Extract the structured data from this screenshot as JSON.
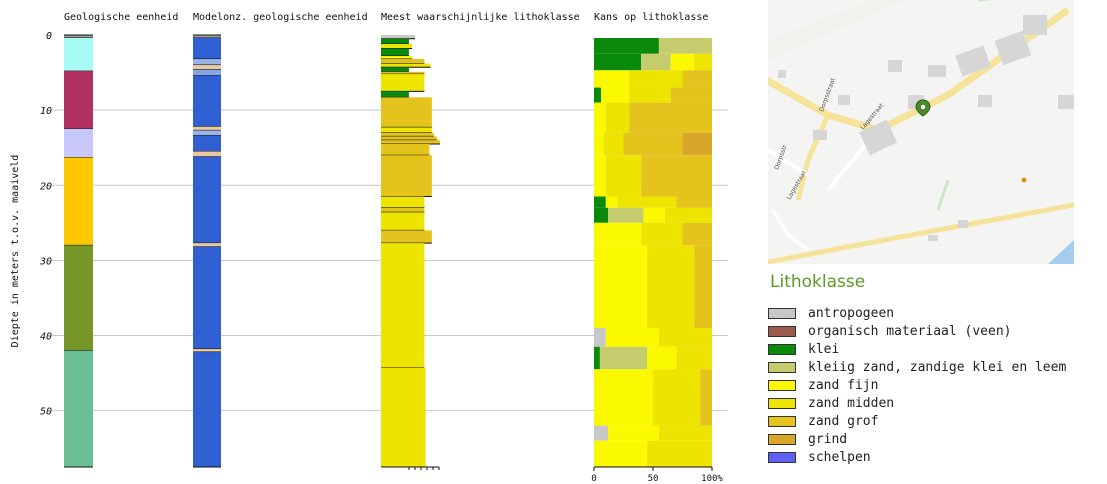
{
  "chart_data": {
    "type": "geological-profile",
    "ylabel": "Diepte in meters t.o.v. maaiveld",
    "ylim": [
      0,
      57.5
    ],
    "y_ticks": [
      0,
      10,
      20,
      30,
      40,
      50
    ],
    "grid": true,
    "columns": [
      {
        "title": "Geologische eenheid"
      },
      {
        "title": "Modelonz. geologische eenheid"
      },
      {
        "title": "Meest waarschijnlijke lithoklasse"
      },
      {
        "title": "Kans op lithoklasse"
      }
    ],
    "geologische_eenheid": [
      {
        "top": 0,
        "bottom": 0.4,
        "color": "#9e9e9e"
      },
      {
        "top": 0.4,
        "bottom": 4.8,
        "color": "#a6fbf4"
      },
      {
        "top": 4.8,
        "bottom": 12.5,
        "color": "#b0305f"
      },
      {
        "top": 12.5,
        "bottom": 16.3,
        "color": "#c9c8fc"
      },
      {
        "top": 16.3,
        "bottom": 28.0,
        "color": "#fdc800"
      },
      {
        "top": 28.0,
        "bottom": 42.0,
        "color": "#76962a"
      },
      {
        "top": 42.0,
        "bottom": 57.5,
        "color": "#6cbf94"
      }
    ],
    "modelonzekerheid": [
      {
        "top": 0,
        "bottom": 0.4,
        "color": "#9e9e9e"
      },
      {
        "top": 0.4,
        "bottom": 3.2,
        "color": "#2f5fd0"
      },
      {
        "top": 3.2,
        "bottom": 4.0,
        "color": "#9bb3e6"
      },
      {
        "top": 4.0,
        "bottom": 4.6,
        "color": "#e8c9a0"
      },
      {
        "top": 4.6,
        "bottom": 5.4,
        "color": "#8aa6e2"
      },
      {
        "top": 5.4,
        "bottom": 12.2,
        "color": "#2f5fd0"
      },
      {
        "top": 12.2,
        "bottom": 12.7,
        "color": "#e8c9a0"
      },
      {
        "top": 12.7,
        "bottom": 13.4,
        "color": "#9bb3e6"
      },
      {
        "top": 13.4,
        "bottom": 15.5,
        "color": "#2f5fd0"
      },
      {
        "top": 15.5,
        "bottom": 16.2,
        "color": "#e8c9a0"
      },
      {
        "top": 16.2,
        "bottom": 27.7,
        "color": "#2f5fd0"
      },
      {
        "top": 27.7,
        "bottom": 28.2,
        "color": "#e8c9a0"
      },
      {
        "top": 28.2,
        "bottom": 41.8,
        "color": "#2f5fd0"
      },
      {
        "top": 41.8,
        "bottom": 42.2,
        "color": "#e8c9a0"
      },
      {
        "top": 42.2,
        "bottom": 57.5,
        "color": "#2f5fd0"
      }
    ],
    "meest_waarschijnlijk": [
      {
        "top": 0,
        "bottom": 0.5,
        "class": "antropogeen",
        "width": 0.55
      },
      {
        "top": 0.5,
        "bottom": 1.2,
        "class": "klei",
        "width": 0.45
      },
      {
        "top": 1.2,
        "bottom": 1.8,
        "class": "zand midden",
        "width": 0.5
      },
      {
        "top": 1.8,
        "bottom": 2.8,
        "class": "klei",
        "width": 0.45
      },
      {
        "top": 2.8,
        "bottom": 3.2,
        "class": "zand fijn",
        "width": 0.5
      },
      {
        "top": 3.2,
        "bottom": 3.8,
        "class": "zand grof",
        "width": 0.7
      },
      {
        "top": 3.8,
        "bottom": 4.3,
        "class": "zand midden",
        "width": 0.8
      },
      {
        "top": 4.3,
        "bottom": 4.9,
        "class": "klei",
        "width": 0.45
      },
      {
        "top": 4.9,
        "bottom": 5.2,
        "class": "zand grof",
        "width": 0.7
      },
      {
        "top": 5.2,
        "bottom": 7.5,
        "class": "zand midden",
        "width": 0.7
      },
      {
        "top": 7.5,
        "bottom": 8.3,
        "class": "klei",
        "width": 0.45
      },
      {
        "top": 8.3,
        "bottom": 12.3,
        "class": "zand grof",
        "width": 0.82
      },
      {
        "top": 12.3,
        "bottom": 13.0,
        "class": "zand midden",
        "width": 0.82
      },
      {
        "top": 13.0,
        "bottom": 13.5,
        "class": "zand grof",
        "width": 0.85
      },
      {
        "top": 13.5,
        "bottom": 14.0,
        "class": "zand grof",
        "width": 0.9
      },
      {
        "top": 14.0,
        "bottom": 14.5,
        "class": "zand grof",
        "width": 0.95
      },
      {
        "top": 14.5,
        "bottom": 16.0,
        "class": "zand grof",
        "width": 0.78
      },
      {
        "top": 16.0,
        "bottom": 21.5,
        "class": "zand grof",
        "width": 0.82
      },
      {
        "top": 21.5,
        "bottom": 23.0,
        "class": "zand midden",
        "width": 0.7
      },
      {
        "top": 23.0,
        "bottom": 23.6,
        "class": "zand grof",
        "width": 0.7
      },
      {
        "top": 23.6,
        "bottom": 26.0,
        "class": "zand midden",
        "width": 0.7
      },
      {
        "top": 26.0,
        "bottom": 27.7,
        "class": "zand grof",
        "width": 0.82
      },
      {
        "top": 27.7,
        "bottom": 44.3,
        "class": "zand midden",
        "width": 0.7
      },
      {
        "top": 44.3,
        "bottom": 57.5,
        "class": "zand midden",
        "width": 0.72
      }
    ],
    "kans_x_ticks": [
      "0",
      "50",
      "100%"
    ],
    "kans_op_lithoklasse": [
      {
        "top": 0.4,
        "bottom": 2.5,
        "parts": [
          [
            "klei",
            0.55
          ],
          [
            "kleiig zand, zandige klei en leem",
            0.45
          ]
        ]
      },
      {
        "top": 2.5,
        "bottom": 4.7,
        "parts": [
          [
            "klei",
            0.4
          ],
          [
            "kleiig zand, zandige klei en leem",
            0.25
          ],
          [
            "zand fijn",
            0.2
          ],
          [
            "zand midden",
            0.15
          ]
        ]
      },
      {
        "top": 4.7,
        "bottom": 7.0,
        "parts": [
          [
            "zand fijn",
            0.3
          ],
          [
            "zand midden",
            0.45
          ],
          [
            "zand grof",
            0.25
          ]
        ]
      },
      {
        "top": 7.0,
        "bottom": 9.0,
        "parts": [
          [
            "klei",
            0.06
          ],
          [
            "zand fijn",
            0.24
          ],
          [
            "zand midden",
            0.35
          ],
          [
            "zand grof",
            0.35
          ]
        ]
      },
      {
        "top": 9.0,
        "bottom": 13.0,
        "parts": [
          [
            "zand fijn",
            0.1
          ],
          [
            "zand midden",
            0.2
          ],
          [
            "zand grof",
            0.7
          ]
        ]
      },
      {
        "top": 13.0,
        "bottom": 16.0,
        "parts": [
          [
            "zand fijn",
            0.08
          ],
          [
            "zand midden",
            0.17
          ],
          [
            "zand grof",
            0.5
          ],
          [
            "grind",
            0.25
          ]
        ]
      },
      {
        "top": 16.0,
        "bottom": 21.5,
        "parts": [
          [
            "zand fijn",
            0.1
          ],
          [
            "zand midden",
            0.3
          ],
          [
            "zand grof",
            0.6
          ]
        ]
      },
      {
        "top": 21.5,
        "bottom": 23.0,
        "parts": [
          [
            "klei",
            0.1
          ],
          [
            "zand fijn",
            0.1
          ],
          [
            "zand midden",
            0.5
          ],
          [
            "zand grof",
            0.3
          ]
        ]
      },
      {
        "top": 23.0,
        "bottom": 25.0,
        "parts": [
          [
            "klei",
            0.12
          ],
          [
            "kleiig zand, zandige klei en leem",
            0.3
          ],
          [
            "zand fijn",
            0.18
          ],
          [
            "zand midden",
            0.4
          ]
        ]
      },
      {
        "top": 25.0,
        "bottom": 28.0,
        "parts": [
          [
            "zand fijn",
            0.4
          ],
          [
            "zand midden",
            0.35
          ],
          [
            "zand grof",
            0.25
          ]
        ]
      },
      {
        "top": 28.0,
        "bottom": 39.0,
        "parts": [
          [
            "zand fijn",
            0.45
          ],
          [
            "zand midden",
            0.4
          ],
          [
            "zand grof",
            0.15
          ]
        ]
      },
      {
        "top": 39.0,
        "bottom": 41.5,
        "parts": [
          [
            "antropogeen",
            0.1
          ],
          [
            "zand fijn",
            0.45
          ],
          [
            "zand midden",
            0.45
          ]
        ]
      },
      {
        "top": 41.5,
        "bottom": 44.5,
        "parts": [
          [
            "klei",
            0.05
          ],
          [
            "kleiig zand, zandige klei en leem",
            0.4
          ],
          [
            "zand fijn",
            0.25
          ],
          [
            "zand midden",
            0.3
          ]
        ]
      },
      {
        "top": 44.5,
        "bottom": 52.0,
        "parts": [
          [
            "zand fijn",
            0.5
          ],
          [
            "zand midden",
            0.4
          ],
          [
            "zand grof",
            0.1
          ]
        ]
      },
      {
        "top": 52.0,
        "bottom": 54.0,
        "parts": [
          [
            "antropogeen",
            0.12
          ],
          [
            "zand fijn",
            0.43
          ],
          [
            "zand midden",
            0.45
          ]
        ]
      },
      {
        "top": 54.0,
        "bottom": 57.5,
        "parts": [
          [
            "zand fijn",
            0.45
          ],
          [
            "zand midden",
            0.55
          ]
        ]
      }
    ]
  },
  "map": {
    "streets": [
      "Dorpsstraat",
      "Lagestraat",
      "Lagestraat",
      "Dorpsstr"
    ],
    "marker_color": "#4b8b2c",
    "poi_color": "#e08a1e"
  },
  "legend": {
    "title": "Lithoklasse",
    "items": [
      {
        "label": "antropogeen",
        "color": "#c8c8c8"
      },
      {
        "label": "organisch materiaal (veen)",
        "color": "#9c5a4a"
      },
      {
        "label": "klei",
        "color": "#0a8a0a"
      },
      {
        "label": "kleiig zand, zandige klei en leem",
        "color": "#c6cc6e"
      },
      {
        "label": "zand fijn",
        "color": "#fbf900"
      },
      {
        "label": "zand midden",
        "color": "#ede400"
      },
      {
        "label": "zand grof",
        "color": "#e3c31c"
      },
      {
        "label": "grind",
        "color": "#d8a72a"
      },
      {
        "label": "schelpen",
        "color": "#5d60f0"
      }
    ]
  }
}
